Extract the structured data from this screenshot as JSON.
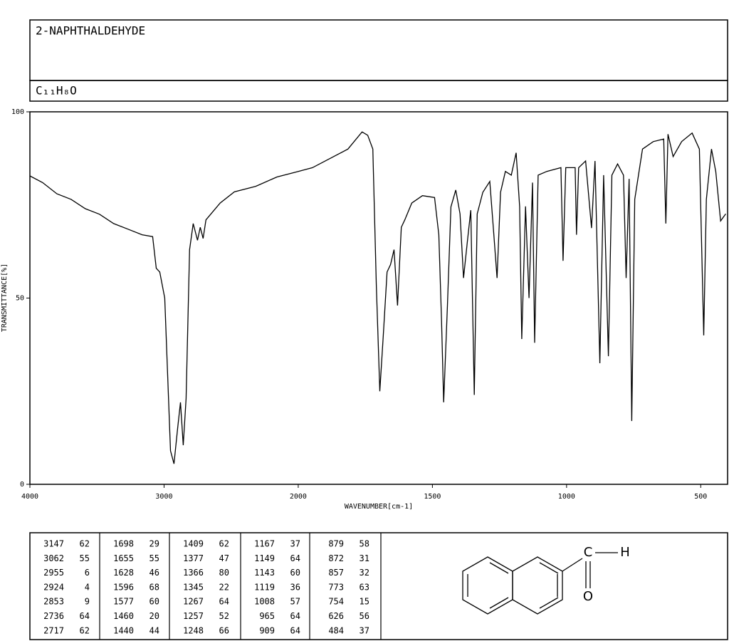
{
  "chart_data": {
    "type": "line",
    "title": "2-NAPHTHALDEHYDE",
    "formula": "C₁₁H₈O",
    "xlabel": "WAVENUMBER[cm-1]",
    "ylabel": "TRANSMITTANCE[%]",
    "xlim": [
      4000,
      400
    ],
    "xticks": [
      4000,
      3000,
      2000,
      1500,
      1000,
      500
    ],
    "ylim": [
      0,
      100
    ],
    "yticks": [
      0,
      50,
      100
    ],
    "x": [
      4000,
      3905,
      3799,
      3693,
      3587,
      3481,
      3376,
      3270,
      3164,
      3085,
      3058,
      3032,
      2995,
      2952,
      2926,
      2899,
      2878,
      2857,
      2836,
      2810,
      2783,
      2751,
      2730,
      2709,
      2688,
      2582,
      2476,
      2317,
      2159,
      2000,
      1947,
      1868,
      1815,
      1762,
      1741,
      1722,
      1709,
      1696,
      1683,
      1669,
      1656,
      1643,
      1630,
      1616,
      1603,
      1577,
      1537,
      1492,
      1476,
      1466,
      1458,
      1444,
      1431,
      1413,
      1397,
      1384,
      1370,
      1357,
      1344,
      1333,
      1312,
      1286,
      1272,
      1259,
      1246,
      1228,
      1206,
      1188,
      1175,
      1167,
      1153,
      1140,
      1127,
      1119,
      1106,
      1074,
      1021,
      1013,
      1003,
      968,
      963,
      955,
      929,
      907,
      894,
      876,
      862,
      844,
      831,
      810,
      788,
      778,
      767,
      757,
      746,
      717,
      677,
      638,
      630,
      622,
      603,
      571,
      532,
      505,
      489,
      479,
      460,
      444,
      426,
      407
    ],
    "series": [
      {
        "name": "spectrum",
        "color": "#000000",
        "values": [
          82.8,
          81,
          78,
          76.5,
          74,
          72.5,
          70,
          68.5,
          67,
          66.5,
          58,
          57,
          50,
          9,
          5.5,
          15,
          22,
          10.5,
          23,
          63,
          70,
          65.5,
          69,
          66,
          71,
          75.5,
          78.5,
          80,
          82.5,
          84,
          85,
          88,
          90,
          94.6,
          93.7,
          90,
          53.5,
          25,
          40,
          57,
          59,
          63,
          48,
          69,
          71,
          75.5,
          77.5,
          77,
          67,
          44,
          22,
          48,
          74.5,
          79,
          72.6,
          55.4,
          65,
          73.6,
          24,
          72.6,
          78.4,
          81.3,
          68,
          55.4,
          78.4,
          84,
          83,
          89,
          74.6,
          39,
          74.6,
          50,
          81,
          38,
          83,
          84,
          85,
          60,
          85,
          85,
          67,
          85,
          86.8,
          68.8,
          86.8,
          32.5,
          83,
          34.4,
          83,
          86,
          83,
          55.4,
          82,
          17,
          76.5,
          90,
          92,
          92.7,
          70,
          94,
          88,
          92,
          94.3,
          90,
          40,
          76.5,
          90,
          84,
          70.7,
          72.6
        ]
      }
    ],
    "peak_table": [
      [
        [
          "3147",
          "62"
        ],
        [
          "3062",
          "55"
        ],
        [
          "2955",
          "6"
        ],
        [
          "2924",
          "4"
        ],
        [
          "2853",
          "9"
        ],
        [
          "2736",
          "64"
        ],
        [
          "2717",
          "62"
        ]
      ],
      [
        [
          "1698",
          "29"
        ],
        [
          "1655",
          "55"
        ],
        [
          "1628",
          "46"
        ],
        [
          "1596",
          "68"
        ],
        [
          "1577",
          "60"
        ],
        [
          "1460",
          "20"
        ],
        [
          "1440",
          "44"
        ]
      ],
      [
        [
          "1409",
          "62"
        ],
        [
          "1377",
          "47"
        ],
        [
          "1366",
          "80"
        ],
        [
          "1345",
          "22"
        ],
        [
          "1267",
          "64"
        ],
        [
          "1257",
          "52"
        ],
        [
          "1248",
          "66"
        ]
      ],
      [
        [
          "1167",
          "37"
        ],
        [
          "1149",
          "64"
        ],
        [
          "1143",
          "60"
        ],
        [
          "1119",
          "36"
        ],
        [
          "1008",
          "57"
        ],
        [
          "965",
          "64"
        ],
        [
          "909",
          "64"
        ]
      ],
      [
        [
          "879",
          "58"
        ],
        [
          "872",
          "31"
        ],
        [
          "857",
          "32"
        ],
        [
          "773",
          "63"
        ],
        [
          "754",
          "15"
        ],
        [
          "626",
          "56"
        ],
        [
          "484",
          "37"
        ]
      ]
    ],
    "structure_labels": [
      "C",
      "H",
      "O"
    ]
  }
}
